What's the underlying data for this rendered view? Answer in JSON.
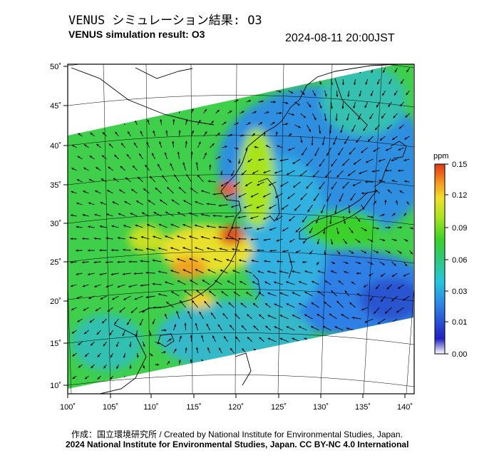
{
  "title_jp": "VENUS シミュレーション結果: O3",
  "title_en": "VENUS simulation result: O3",
  "timestamp": "2024-08-11 20:00JST",
  "lat_labels": [
    "50˚",
    "45˚",
    "40˚",
    "35˚",
    "30˚",
    "25˚",
    "20˚",
    "15˚",
    "10˚"
  ],
  "lon_labels": [
    "100˚",
    "105˚",
    "110˚",
    "115˚",
    "120˚",
    "125˚",
    "130˚",
    "135˚",
    "140˚"
  ],
  "colorbar": {
    "unit": "ppm",
    "ticks": [
      "0.15",
      "0.12",
      "0.09",
      "0.06",
      "0.03",
      "0.01",
      "0.00"
    ],
    "colors": [
      "#ffffff",
      "#2020c0",
      "#2f7fe6",
      "#27c6e0",
      "#2ec97a",
      "#3ad12a",
      "#a8e41e",
      "#f0e02a",
      "#f59a1e",
      "#e3341a"
    ]
  },
  "credit": "作成：国立環境研究所 / Created by National Institute for Environmental Studies, Japan.",
  "copyright": "2024 National Institute for Environmental Studies, Japan. CC BY-NC 4.0 International"
}
